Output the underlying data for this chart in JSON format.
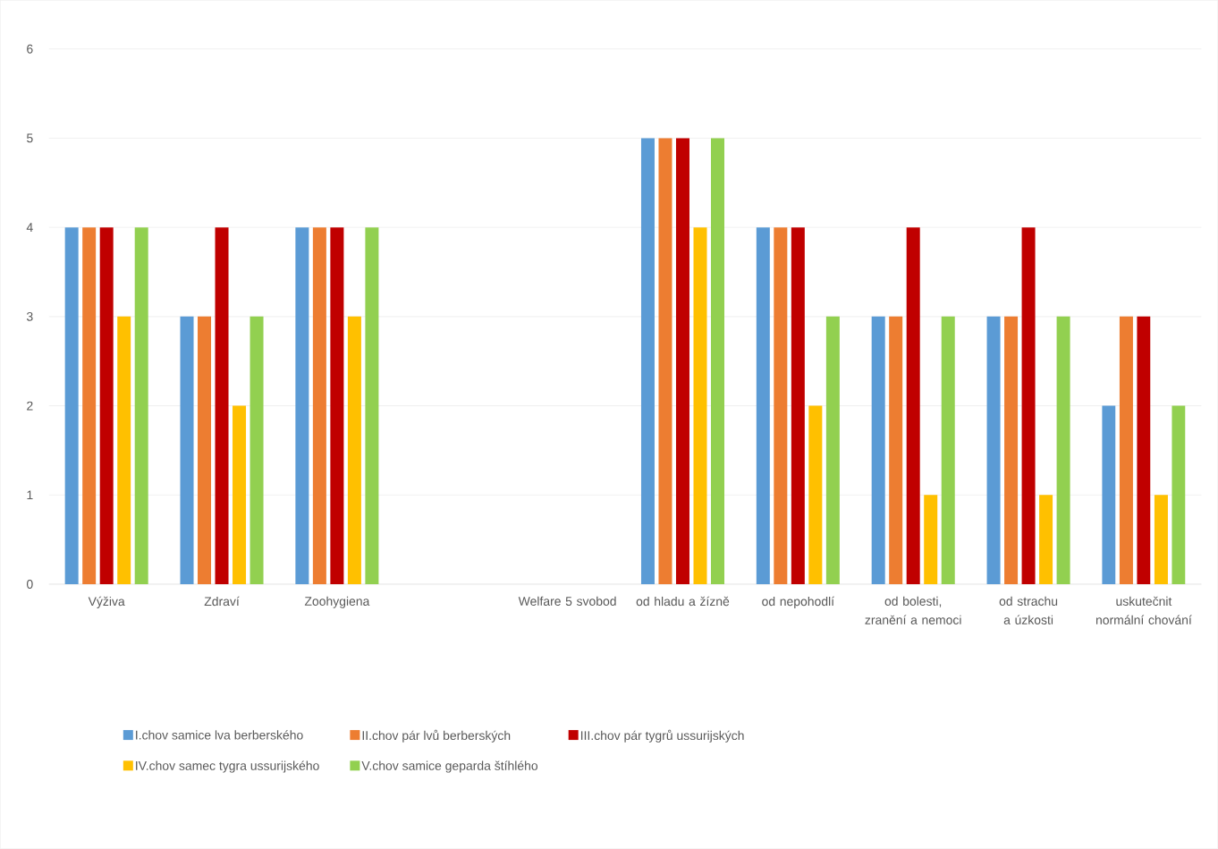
{
  "chart_data": {
    "type": "bar",
    "categories": [
      "Výživa",
      "Zdraví",
      "Zoohygiena",
      null,
      "Welfare 5 svobod",
      "od hladu a žízně",
      "od nepohodlí",
      "od bolesti, zranění a nemoci",
      "od strachu a úzkosti",
      "uskutečnit normální chování"
    ],
    "series": [
      {
        "name": "I.chov samice lva berberského",
        "color": "#5b9bd5",
        "values": [
          4,
          3,
          4,
          null,
          null,
          5,
          4,
          3,
          3,
          2
        ]
      },
      {
        "name": "II.chov pár lvů berberských",
        "color": "#ed7d31",
        "values": [
          4,
          3,
          4,
          null,
          null,
          5,
          4,
          3,
          3,
          3
        ]
      },
      {
        "name": "III.chov pár tygrů ussurijských",
        "color": "#c00000",
        "values": [
          4,
          4,
          4,
          null,
          null,
          5,
          4,
          4,
          4,
          3
        ]
      },
      {
        "name": "IV.chov samec tygra ussurijského",
        "color": "#ffc000",
        "values": [
          3,
          2,
          3,
          null,
          null,
          4,
          2,
          1,
          1,
          1
        ]
      },
      {
        "name": "V.chov samice geparda štíhlého",
        "color": "#92d050",
        "values": [
          4,
          3,
          4,
          null,
          null,
          5,
          3,
          3,
          3,
          2
        ]
      }
    ],
    "ylim": [
      0,
      6
    ],
    "yticks": [
      0,
      1,
      2,
      3,
      4,
      5,
      6
    ],
    "grid": "y",
    "legend": "bottom"
  }
}
